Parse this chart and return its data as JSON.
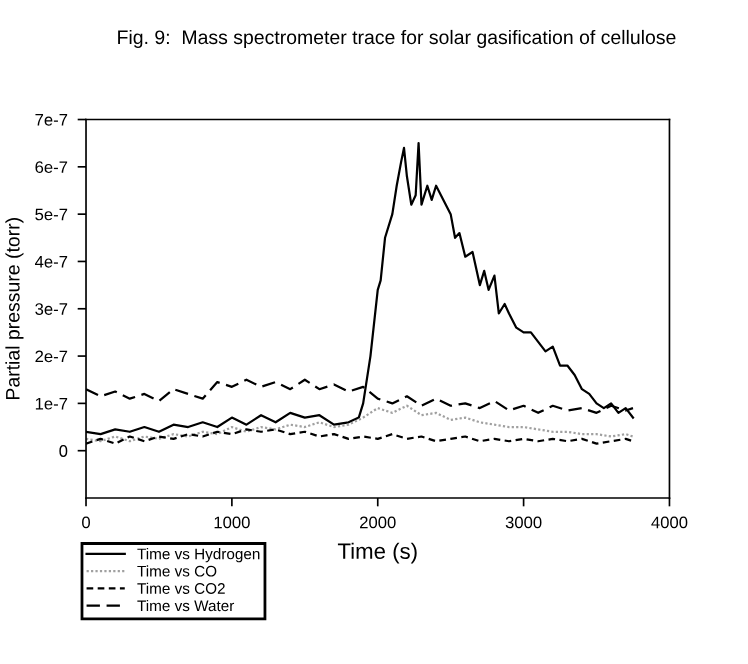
{
  "chart_data": {
    "type": "line",
    "title": "Fig. 9:  Mass spectrometer trace for solar gasification of cellulose",
    "xlabel": "Time (s)",
    "ylabel": "Partial pressure (torr)",
    "xlim": [
      0,
      4000
    ],
    "xticks": [
      0,
      1000,
      2000,
      3000,
      4000
    ],
    "ylim": [
      -1e-07,
      7e-07
    ],
    "yticks": [
      {
        "value": 0,
        "label": "0"
      },
      {
        "value": 1e-07,
        "label": "1e-7"
      },
      {
        "value": 2e-07,
        "label": "2e-7"
      },
      {
        "value": 3e-07,
        "label": "3e-7"
      },
      {
        "value": 4e-07,
        "label": "4e-7"
      },
      {
        "value": 5e-07,
        "label": "5e-7"
      },
      {
        "value": 6e-07,
        "label": "6e-7"
      },
      {
        "value": 7e-07,
        "label": "7e-7"
      }
    ],
    "grid": false,
    "legend": "bottom left",
    "marker": "none",
    "series": [
      {
        "name": "Time vs Hydrogen",
        "color": "#000000",
        "line_style": "solid",
        "x": [
          0,
          100,
          200,
          300,
          400,
          500,
          600,
          700,
          800,
          900,
          1000,
          1100,
          1200,
          1300,
          1400,
          1500,
          1600,
          1700,
          1800,
          1870,
          1900,
          1950,
          2000,
          2020,
          2050,
          2100,
          2130,
          2160,
          2180,
          2200,
          2230,
          2260,
          2280,
          2300,
          2340,
          2370,
          2400,
          2450,
          2500,
          2530,
          2560,
          2600,
          2650,
          2700,
          2730,
          2760,
          2800,
          2830,
          2870,
          2900,
          2950,
          3000,
          3050,
          3100,
          3150,
          3200,
          3250,
          3300,
          3350,
          3400,
          3450,
          3500,
          3550,
          3600,
          3650,
          3700,
          3750
        ],
        "values": [
          4e-08,
          3.5e-08,
          4.5e-08,
          4e-08,
          5e-08,
          4e-08,
          5.5e-08,
          5e-08,
          6e-08,
          5e-08,
          7e-08,
          5.5e-08,
          7.5e-08,
          6e-08,
          8e-08,
          7e-08,
          7.5e-08,
          5.5e-08,
          6e-08,
          7e-08,
          1e-07,
          2e-07,
          3.4e-07,
          3.6e-07,
          4.5e-07,
          5e-07,
          5.6e-07,
          6.1e-07,
          6.4e-07,
          5.8e-07,
          5.2e-07,
          5.4e-07,
          6.5e-07,
          5.2e-07,
          5.6e-07,
          5.3e-07,
          5.6e-07,
          5.3e-07,
          5e-07,
          4.5e-07,
          4.6e-07,
          4.1e-07,
          4.2e-07,
          3.5e-07,
          3.8e-07,
          3.4e-07,
          3.7e-07,
          2.9e-07,
          3.1e-07,
          2.9e-07,
          2.6e-07,
          2.5e-07,
          2.5e-07,
          2.3e-07,
          2.1e-07,
          2.2e-07,
          1.8e-07,
          1.8e-07,
          1.6e-07,
          1.3e-07,
          1.2e-07,
          1e-07,
          9e-08,
          1e-07,
          8e-08,
          9e-08,
          7e-08
        ]
      },
      {
        "name": "Time vs CO",
        "color": "#a0a0a0",
        "line_style": "dotted",
        "x": [
          0,
          100,
          200,
          300,
          400,
          500,
          600,
          700,
          800,
          900,
          1000,
          1100,
          1200,
          1300,
          1400,
          1500,
          1600,
          1700,
          1800,
          1900,
          2000,
          2100,
          2200,
          2300,
          2400,
          2500,
          2600,
          2700,
          2800,
          2900,
          3000,
          3100,
          3200,
          3300,
          3400,
          3500,
          3600,
          3700,
          3750
        ],
        "values": [
          2.5e-08,
          2e-08,
          3e-08,
          2e-08,
          3e-08,
          2.5e-08,
          3.5e-08,
          3e-08,
          4e-08,
          3.5e-08,
          5e-08,
          4e-08,
          5e-08,
          4.5e-08,
          5.5e-08,
          5e-08,
          6e-08,
          5e-08,
          5.5e-08,
          7e-08,
          9e-08,
          8e-08,
          9.5e-08,
          7.5e-08,
          8e-08,
          6.5e-08,
          7e-08,
          6e-08,
          5.5e-08,
          5e-08,
          5e-08,
          4.5e-08,
          4e-08,
          4e-08,
          3.5e-08,
          3.5e-08,
          3e-08,
          3.5e-08,
          3e-08
        ]
      },
      {
        "name": "Time vs CO2",
        "color": "#000000",
        "line_style": "dashed",
        "x": [
          0,
          100,
          200,
          300,
          400,
          500,
          600,
          700,
          800,
          900,
          1000,
          1100,
          1200,
          1300,
          1400,
          1500,
          1600,
          1700,
          1800,
          1900,
          2000,
          2100,
          2200,
          2300,
          2400,
          2500,
          2600,
          2700,
          2800,
          2900,
          3000,
          3100,
          3200,
          3300,
          3400,
          3500,
          3600,
          3700,
          3750
        ],
        "values": [
          1.5e-08,
          2.5e-08,
          1.5e-08,
          3e-08,
          2e-08,
          3e-08,
          2.5e-08,
          3.5e-08,
          3e-08,
          4e-08,
          3.5e-08,
          4.5e-08,
          4e-08,
          4.5e-08,
          3.5e-08,
          4e-08,
          3e-08,
          3.5e-08,
          2.5e-08,
          3e-08,
          2.5e-08,
          3.5e-08,
          2.5e-08,
          3e-08,
          2e-08,
          2.5e-08,
          3e-08,
          2e-08,
          2.5e-08,
          2e-08,
          2.5e-08,
          2e-08,
          2.5e-08,
          2e-08,
          2.5e-08,
          1.5e-08,
          2e-08,
          2.5e-08,
          2e-08
        ]
      },
      {
        "name": "Time vs Water",
        "color": "#000000",
        "line_style": "dashdot",
        "x": [
          0,
          100,
          200,
          300,
          400,
          500,
          600,
          700,
          800,
          900,
          1000,
          1100,
          1200,
          1300,
          1400,
          1500,
          1600,
          1700,
          1800,
          1900,
          2000,
          2100,
          2200,
          2300,
          2400,
          2500,
          2600,
          2700,
          2800,
          2900,
          3000,
          3100,
          3200,
          3300,
          3400,
          3500,
          3600,
          3700,
          3750
        ],
        "values": [
          1.3e-07,
          1.15e-07,
          1.25e-07,
          1.1e-07,
          1.2e-07,
          1.05e-07,
          1.3e-07,
          1.2e-07,
          1.1e-07,
          1.45e-07,
          1.35e-07,
          1.5e-07,
          1.35e-07,
          1.45e-07,
          1.3e-07,
          1.5e-07,
          1.3e-07,
          1.4e-07,
          1.25e-07,
          1.35e-07,
          1.1e-07,
          1e-07,
          1.15e-07,
          9.5e-08,
          1.1e-07,
          9.5e-08,
          1e-07,
          9e-08,
          1.05e-07,
          8.5e-08,
          9.5e-08,
          8e-08,
          9.5e-08,
          8.5e-08,
          9e-08,
          8e-08,
          9.5e-08,
          8.5e-08,
          9e-08
        ]
      }
    ]
  }
}
